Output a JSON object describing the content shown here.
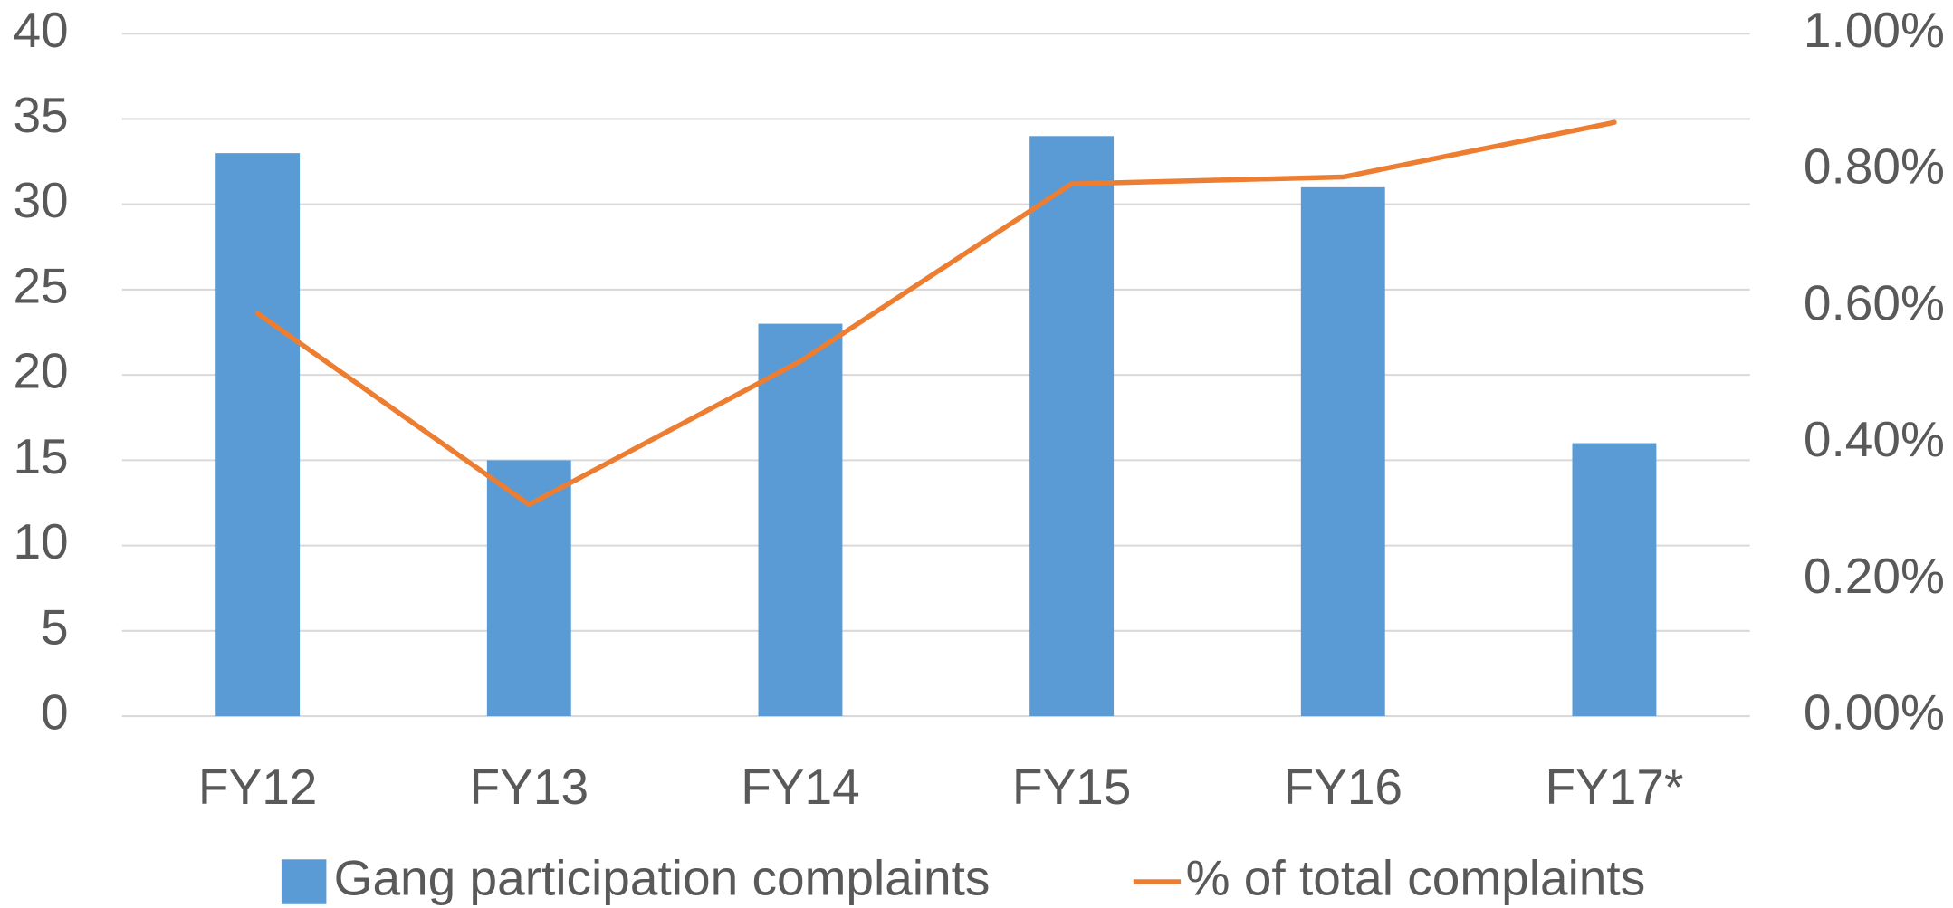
{
  "chart_data": {
    "type": "bar",
    "categories": [
      "FY12",
      "FY13",
      "FY14",
      "FY15",
      "FY16",
      "FY17*"
    ],
    "series": [
      {
        "name": "Gang participation complaints",
        "type": "bar",
        "color": "#5b9bd5",
        "values": [
          33,
          15,
          23,
          34,
          31,
          16
        ]
      },
      {
        "name": "% of total complaints",
        "type": "line",
        "axis": "y2",
        "color": "#ed7d31",
        "values": [
          0.59,
          0.31,
          0.52,
          0.78,
          0.79,
          0.87
        ]
      }
    ],
    "ylim": [
      0,
      40
    ],
    "yticks": [
      0,
      5,
      10,
      15,
      20,
      25,
      30,
      35,
      40
    ],
    "y2lim": [
      0,
      1
    ],
    "y2ticks": [
      {
        "value": 0,
        "label": "0.00%"
      },
      {
        "value": 0.2,
        "label": "0.20%"
      },
      {
        "value": 0.4,
        "label": "0.40%"
      },
      {
        "value": 0.6,
        "label": "0.60%"
      },
      {
        "value": 0.8,
        "label": "0.80%"
      },
      {
        "value": 1,
        "label": "1.00%"
      }
    ],
    "grid": true,
    "legend": "bottom"
  }
}
